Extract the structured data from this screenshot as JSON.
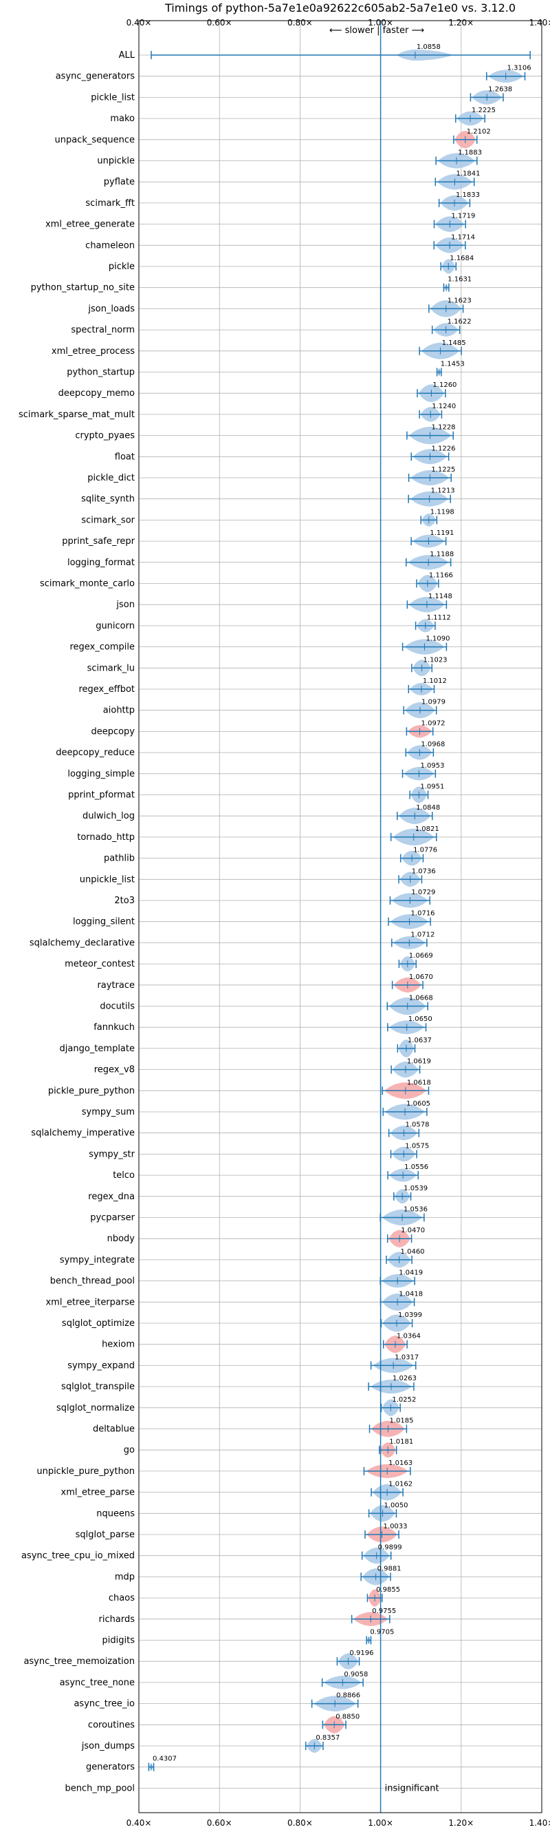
{
  "chart_data": {
    "type": "violin",
    "title": "Timings of python-5a7e1e0a92622c605ab2-5a7e1e0 vs. 3.12.0",
    "xlabel": "",
    "ylabel": "",
    "direction_label": "⟵ slower | faster ⟶",
    "xlim": [
      0.4,
      1.4
    ],
    "xticks": [
      0.4,
      0.6,
      0.8,
      1.0,
      1.2,
      1.4
    ],
    "xtick_labels": [
      "0.40×",
      "0.60×",
      "0.80×",
      "1.00×",
      "1.20×",
      "1.40×"
    ],
    "grid": true,
    "reference_line": 1.0,
    "colors": {
      "faster": "#a7c8e6",
      "slower": "#f4a6a6",
      "line": "#1f77b4",
      "grid": "#b0b0b0"
    },
    "benchmarks": [
      {
        "name": "ALL",
        "value": 1.0858,
        "label": "1.0858",
        "status": "faster"
      },
      {
        "name": "async_generators",
        "value": 1.3106,
        "label": "1.3106",
        "status": "faster"
      },
      {
        "name": "pickle_list",
        "value": 1.2638,
        "label": "1.2638",
        "status": "faster"
      },
      {
        "name": "mako",
        "value": 1.2225,
        "label": "1.2225",
        "status": "faster"
      },
      {
        "name": "unpack_sequence",
        "value": 1.2102,
        "label": "1.2102",
        "status": "slower"
      },
      {
        "name": "unpickle",
        "value": 1.1883,
        "label": "1.1883",
        "status": "faster"
      },
      {
        "name": "pyflate",
        "value": 1.1841,
        "label": "1.1841",
        "status": "faster"
      },
      {
        "name": "scimark_fft",
        "value": 1.1833,
        "label": "1.1833",
        "status": "faster"
      },
      {
        "name": "xml_etree_generate",
        "value": 1.1719,
        "label": "1.1719",
        "status": "faster"
      },
      {
        "name": "chameleon",
        "value": 1.1714,
        "label": "1.1714",
        "status": "faster"
      },
      {
        "name": "pickle",
        "value": 1.1684,
        "label": "1.1684",
        "status": "faster"
      },
      {
        "name": "python_startup_no_site",
        "value": 1.1631,
        "label": "1.1631",
        "status": "faster"
      },
      {
        "name": "json_loads",
        "value": 1.1623,
        "label": "1.1623",
        "status": "faster"
      },
      {
        "name": "spectral_norm",
        "value": 1.1622,
        "label": "1.1622",
        "status": "faster"
      },
      {
        "name": "xml_etree_process",
        "value": 1.1485,
        "label": "1.1485",
        "status": "faster"
      },
      {
        "name": "python_startup",
        "value": 1.1453,
        "label": "1.1453",
        "status": "faster"
      },
      {
        "name": "deepcopy_memo",
        "value": 1.126,
        "label": "1.1260",
        "status": "faster"
      },
      {
        "name": "scimark_sparse_mat_mult",
        "value": 1.124,
        "label": "1.1240",
        "status": "faster"
      },
      {
        "name": "crypto_pyaes",
        "value": 1.1228,
        "label": "1.1228",
        "status": "faster"
      },
      {
        "name": "float",
        "value": 1.1226,
        "label": "1.1226",
        "status": "faster"
      },
      {
        "name": "pickle_dict",
        "value": 1.1225,
        "label": "1.1225",
        "status": "faster"
      },
      {
        "name": "sqlite_synth",
        "value": 1.1213,
        "label": "1.1213",
        "status": "faster"
      },
      {
        "name": "scimark_sor",
        "value": 1.1198,
        "label": "1.1198",
        "status": "faster"
      },
      {
        "name": "pprint_safe_repr",
        "value": 1.1191,
        "label": "1.1191",
        "status": "faster"
      },
      {
        "name": "logging_format",
        "value": 1.1188,
        "label": "1.1188",
        "status": "faster"
      },
      {
        "name": "scimark_monte_carlo",
        "value": 1.1166,
        "label": "1.1166",
        "status": "faster"
      },
      {
        "name": "json",
        "value": 1.1148,
        "label": "1.1148",
        "status": "faster"
      },
      {
        "name": "gunicorn",
        "value": 1.1112,
        "label": "1.1112",
        "status": "faster"
      },
      {
        "name": "regex_compile",
        "value": 1.109,
        "label": "1.1090",
        "status": "faster"
      },
      {
        "name": "scimark_lu",
        "value": 1.1023,
        "label": "1.1023",
        "status": "faster"
      },
      {
        "name": "regex_effbot",
        "value": 1.1012,
        "label": "1.1012",
        "status": "faster"
      },
      {
        "name": "aiohttp",
        "value": 1.0979,
        "label": "1.0979",
        "status": "faster"
      },
      {
        "name": "deepcopy",
        "value": 1.0972,
        "label": "1.0972",
        "status": "slower"
      },
      {
        "name": "deepcopy_reduce",
        "value": 1.0968,
        "label": "1.0968",
        "status": "faster"
      },
      {
        "name": "logging_simple",
        "value": 1.0953,
        "label": "1.0953",
        "status": "faster"
      },
      {
        "name": "pprint_pformat",
        "value": 1.0951,
        "label": "1.0951",
        "status": "faster"
      },
      {
        "name": "dulwich_log",
        "value": 1.0848,
        "label": "1.0848",
        "status": "faster"
      },
      {
        "name": "tornado_http",
        "value": 1.0821,
        "label": "1.0821",
        "status": "faster"
      },
      {
        "name": "pathlib",
        "value": 1.0776,
        "label": "1.0776",
        "status": "faster"
      },
      {
        "name": "unpickle_list",
        "value": 1.0736,
        "label": "1.0736",
        "status": "faster"
      },
      {
        "name": "2to3",
        "value": 1.0729,
        "label": "1.0729",
        "status": "faster"
      },
      {
        "name": "logging_silent",
        "value": 1.0716,
        "label": "1.0716",
        "status": "faster"
      },
      {
        "name": "sqlalchemy_declarative",
        "value": 1.0712,
        "label": "1.0712",
        "status": "faster"
      },
      {
        "name": "meteor_contest",
        "value": 1.0669,
        "label": "1.0669",
        "status": "faster"
      },
      {
        "name": "raytrace",
        "value": 1.067,
        "label": "1.0670",
        "status": "slower"
      },
      {
        "name": "docutils",
        "value": 1.0668,
        "label": "1.0668",
        "status": "faster"
      },
      {
        "name": "fannkuch",
        "value": 1.065,
        "label": "1.0650",
        "status": "faster"
      },
      {
        "name": "django_template",
        "value": 1.0637,
        "label": "1.0637",
        "status": "faster"
      },
      {
        "name": "regex_v8",
        "value": 1.0619,
        "label": "1.0619",
        "status": "faster"
      },
      {
        "name": "pickle_pure_python",
        "value": 1.0618,
        "label": "1.0618",
        "status": "slower"
      },
      {
        "name": "sympy_sum",
        "value": 1.0605,
        "label": "1.0605",
        "status": "faster"
      },
      {
        "name": "sqlalchemy_imperative",
        "value": 1.0578,
        "label": "1.0578",
        "status": "faster"
      },
      {
        "name": "sympy_str",
        "value": 1.0575,
        "label": "1.0575",
        "status": "faster"
      },
      {
        "name": "telco",
        "value": 1.0556,
        "label": "1.0556",
        "status": "faster"
      },
      {
        "name": "regex_dna",
        "value": 1.0539,
        "label": "1.0539",
        "status": "faster"
      },
      {
        "name": "pycparser",
        "value": 1.0536,
        "label": "1.0536",
        "status": "faster"
      },
      {
        "name": "nbody",
        "value": 1.047,
        "label": "1.0470",
        "status": "slower"
      },
      {
        "name": "sympy_integrate",
        "value": 1.046,
        "label": "1.0460",
        "status": "faster"
      },
      {
        "name": "bench_thread_pool",
        "value": 1.0419,
        "label": "1.0419",
        "status": "faster"
      },
      {
        "name": "xml_etree_iterparse",
        "value": 1.0418,
        "label": "1.0418",
        "status": "faster"
      },
      {
        "name": "sqlglot_optimize",
        "value": 1.0399,
        "label": "1.0399",
        "status": "faster"
      },
      {
        "name": "hexiom",
        "value": 1.0364,
        "label": "1.0364",
        "status": "slower"
      },
      {
        "name": "sympy_expand",
        "value": 1.0317,
        "label": "1.0317",
        "status": "faster"
      },
      {
        "name": "sqlglot_transpile",
        "value": 1.0263,
        "label": "1.0263",
        "status": "faster"
      },
      {
        "name": "sqlglot_normalize",
        "value": 1.0252,
        "label": "1.0252",
        "status": "faster"
      },
      {
        "name": "deltablue",
        "value": 1.0185,
        "label": "1.0185",
        "status": "slower"
      },
      {
        "name": "go",
        "value": 1.0181,
        "label": "1.0181",
        "status": "slower"
      },
      {
        "name": "unpickle_pure_python",
        "value": 1.0163,
        "label": "1.0163",
        "status": "slower"
      },
      {
        "name": "xml_etree_parse",
        "value": 1.0162,
        "label": "1.0162",
        "status": "faster"
      },
      {
        "name": "nqueens",
        "value": 1.005,
        "label": "1.0050",
        "status": "faster"
      },
      {
        "name": "sqlglot_parse",
        "value": 1.0033,
        "label": "1.0033",
        "status": "slower"
      },
      {
        "name": "async_tree_cpu_io_mixed",
        "value": 0.9899,
        "label": "0.9899",
        "status": "faster"
      },
      {
        "name": "mdp",
        "value": 0.9881,
        "label": "0.9881",
        "status": "faster"
      },
      {
        "name": "chaos",
        "value": 0.9855,
        "label": "0.9855",
        "status": "slower"
      },
      {
        "name": "richards",
        "value": 0.9755,
        "label": "0.9755",
        "status": "slower"
      },
      {
        "name": "pidigits",
        "value": 0.9705,
        "label": "0.9705",
        "status": "faster"
      },
      {
        "name": "async_tree_memoization",
        "value": 0.9196,
        "label": "0.9196",
        "status": "faster"
      },
      {
        "name": "async_tree_none",
        "value": 0.9058,
        "label": "0.9058",
        "status": "faster"
      },
      {
        "name": "async_tree_io",
        "value": 0.8866,
        "label": "0.8866",
        "status": "faster"
      },
      {
        "name": "coroutines",
        "value": 0.885,
        "label": "0.8850",
        "status": "slower"
      },
      {
        "name": "json_dumps",
        "value": 0.8357,
        "label": "0.8357",
        "status": "faster"
      },
      {
        "name": "generators",
        "value": 0.4307,
        "label": "0.4307",
        "status": "faster"
      },
      {
        "name": "bench_mp_pool",
        "value": null,
        "label": "insignificant",
        "status": "insignificant"
      }
    ]
  }
}
